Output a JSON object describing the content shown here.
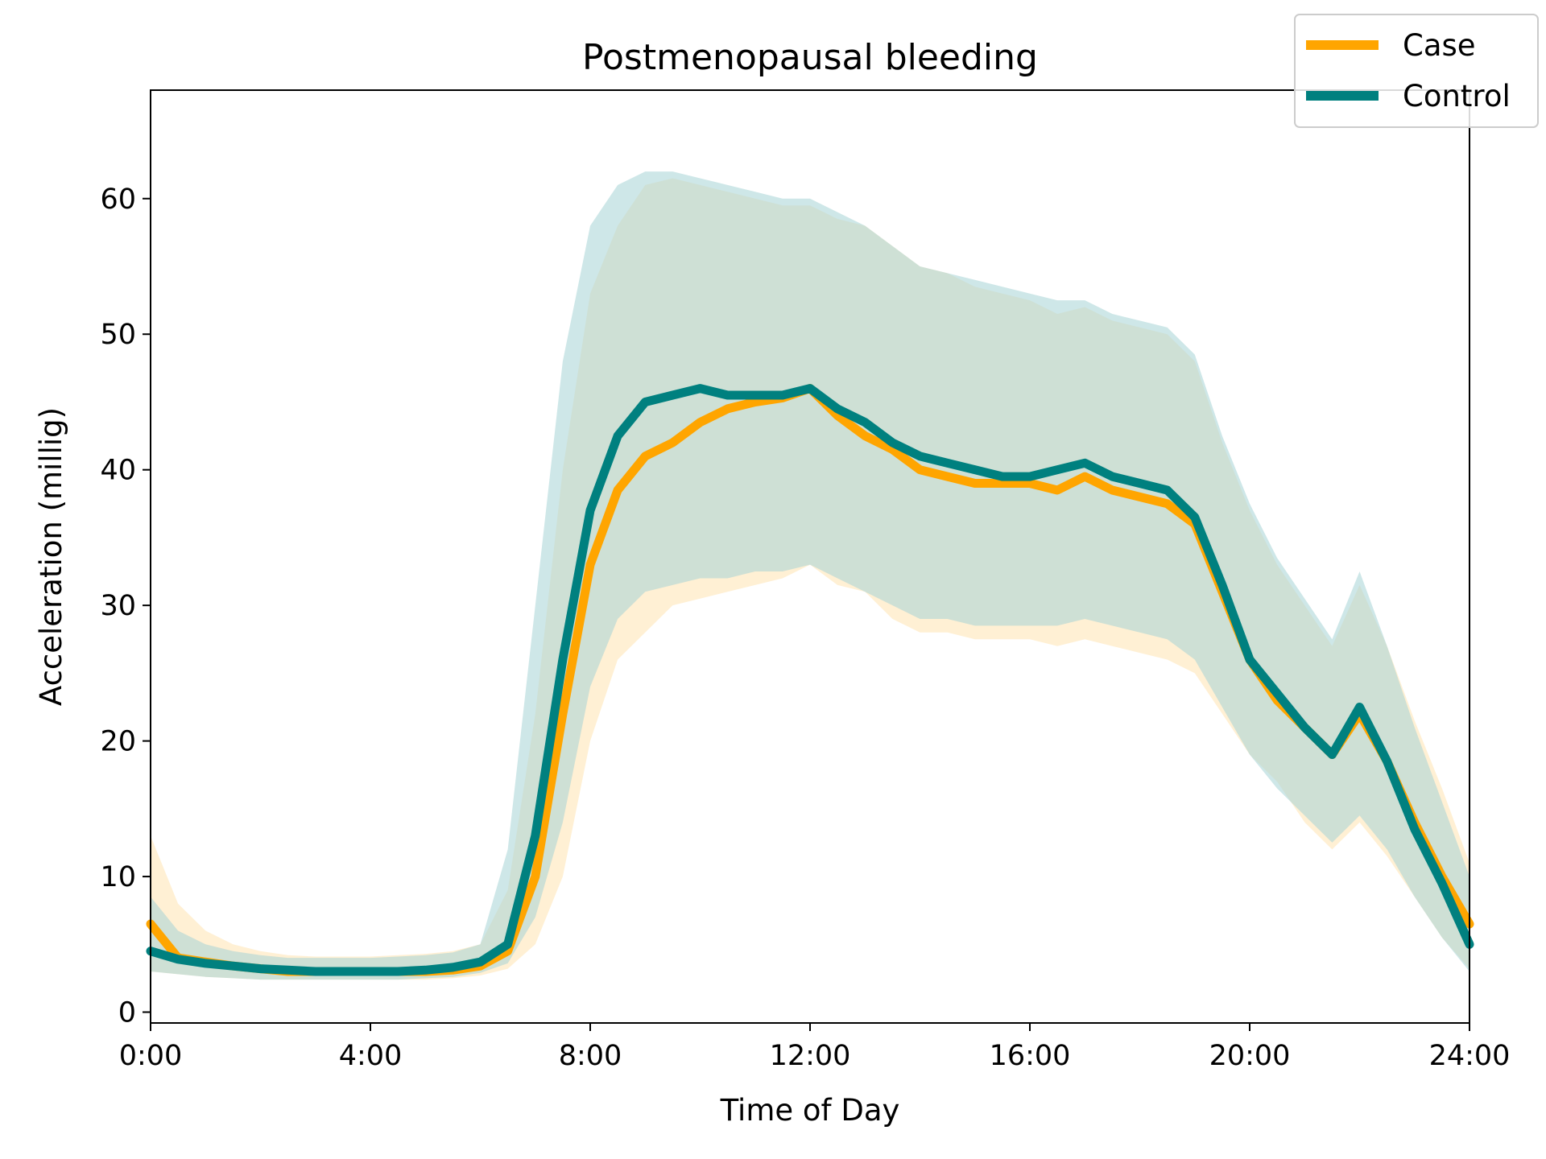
{
  "chart_data": {
    "type": "line",
    "title": "Postmenopausal bleeding",
    "xlabel": "Time of Day",
    "ylabel": "Acceleration (millig)",
    "xlim": [
      0,
      24
    ],
    "ylim": [
      -0.8,
      68
    ],
    "x_ticks": [
      {
        "value": 0,
        "label": "0:00"
      },
      {
        "value": 4,
        "label": "4:00"
      },
      {
        "value": 8,
        "label": "8:00"
      },
      {
        "value": 12,
        "label": "12:00"
      },
      {
        "value": 16,
        "label": "16:00"
      },
      {
        "value": 20,
        "label": "20:00"
      },
      {
        "value": 24,
        "label": "24:00"
      }
    ],
    "y_ticks": [
      0,
      10,
      20,
      30,
      40,
      50,
      60
    ],
    "grid": false,
    "legend": {
      "position": "top-right"
    },
    "x": [
      0,
      0.5,
      1,
      1.5,
      2,
      2.5,
      3,
      3.5,
      4,
      4.5,
      5,
      5.5,
      6,
      6.5,
      7,
      7.5,
      8,
      8.5,
      9,
      9.5,
      10,
      10.5,
      11,
      11.5,
      12,
      12.5,
      13,
      13.5,
      14,
      14.5,
      15,
      15.5,
      16,
      16.5,
      17,
      17.5,
      18,
      18.5,
      19,
      19.5,
      20,
      20.5,
      21,
      21.5,
      22,
      22.5,
      23,
      23.5,
      24
    ],
    "series": [
      {
        "name": "Case",
        "color": "#FFA500",
        "band_color": "#FFE4B0",
        "values": [
          6.5,
          4.0,
          3.7,
          3.4,
          3.2,
          3.0,
          3.0,
          3.0,
          3.0,
          3.0,
          3.0,
          3.1,
          3.4,
          4.5,
          10.0,
          22.0,
          33.0,
          38.5,
          41.0,
          42.0,
          43.5,
          44.5,
          45.0,
          45.3,
          46.0,
          44.0,
          42.5,
          41.5,
          40.0,
          39.5,
          39.0,
          39.0,
          39.0,
          38.5,
          39.5,
          38.5,
          38.0,
          37.5,
          36.0,
          31.0,
          26.0,
          23.0,
          21.0,
          19.0,
          22.0,
          18.5,
          14.0,
          10.0,
          6.5
        ],
        "lower": [
          3.0,
          2.8,
          2.6,
          2.5,
          2.4,
          2.4,
          2.4,
          2.4,
          2.4,
          2.4,
          2.4,
          2.5,
          2.7,
          3.2,
          5.0,
          10.0,
          20.0,
          26.0,
          28.0,
          30.0,
          30.5,
          31.0,
          31.5,
          32.0,
          33.0,
          31.5,
          31.0,
          29.0,
          28.0,
          28.0,
          27.5,
          27.5,
          27.5,
          27.0,
          27.5,
          27.0,
          26.5,
          26.0,
          25.0,
          22.0,
          19.0,
          17.0,
          14.0,
          12.0,
          14.0,
          11.5,
          8.5,
          5.5,
          3.2
        ],
        "upper": [
          13.0,
          8.0,
          6.0,
          5.0,
          4.5,
          4.2,
          4.1,
          4.1,
          4.1,
          4.2,
          4.3,
          4.5,
          5.0,
          9.0,
          22.0,
          40.0,
          53.0,
          58.0,
          61.0,
          61.5,
          61.0,
          60.5,
          60.0,
          59.5,
          59.5,
          58.5,
          58.0,
          56.5,
          55.0,
          54.5,
          53.5,
          53.0,
          52.5,
          51.5,
          52.0,
          51.0,
          50.5,
          50.0,
          48.0,
          42.0,
          37.0,
          33.0,
          30.0,
          27.0,
          31.5,
          27.0,
          21.5,
          16.5,
          11.0
        ]
      },
      {
        "name": "Control",
        "color": "#00807F",
        "band_color": "#A6D4D6",
        "values": [
          4.5,
          3.9,
          3.6,
          3.4,
          3.2,
          3.1,
          3.0,
          3.0,
          3.0,
          3.0,
          3.1,
          3.3,
          3.7,
          5.0,
          13.0,
          26.0,
          37.0,
          42.5,
          45.0,
          45.5,
          46.0,
          45.5,
          45.5,
          45.5,
          46.0,
          44.5,
          43.5,
          42.0,
          41.0,
          40.5,
          40.0,
          39.5,
          39.5,
          40.0,
          40.5,
          39.5,
          39.0,
          38.5,
          36.5,
          31.5,
          26.0,
          23.5,
          21.0,
          19.0,
          22.5,
          18.5,
          13.5,
          9.5,
          5.0
        ],
        "lower": [
          3.0,
          2.8,
          2.6,
          2.5,
          2.4,
          2.4,
          2.4,
          2.4,
          2.4,
          2.4,
          2.5,
          2.6,
          2.9,
          3.6,
          7.0,
          14.0,
          24.0,
          29.0,
          31.0,
          31.5,
          32.0,
          32.0,
          32.5,
          32.5,
          33.0,
          32.0,
          31.0,
          30.0,
          29.0,
          29.0,
          28.5,
          28.5,
          28.5,
          28.5,
          29.0,
          28.5,
          28.0,
          27.5,
          26.0,
          22.5,
          19.0,
          16.5,
          14.5,
          12.5,
          14.5,
          12.0,
          8.5,
          5.5,
          3.0
        ],
        "upper": [
          8.5,
          6.0,
          5.0,
          4.5,
          4.2,
          4.0,
          4.0,
          4.0,
          4.0,
          4.1,
          4.2,
          4.4,
          5.0,
          12.0,
          30.0,
          48.0,
          58.0,
          61.0,
          62.0,
          62.0,
          61.5,
          61.0,
          60.5,
          60.0,
          60.0,
          59.0,
          58.0,
          56.5,
          55.0,
          54.5,
          54.0,
          53.5,
          53.0,
          52.5,
          52.5,
          51.5,
          51.0,
          50.5,
          48.5,
          42.5,
          37.5,
          33.5,
          30.5,
          27.5,
          32.5,
          27.0,
          21.0,
          15.5,
          10.0
        ]
      }
    ]
  }
}
